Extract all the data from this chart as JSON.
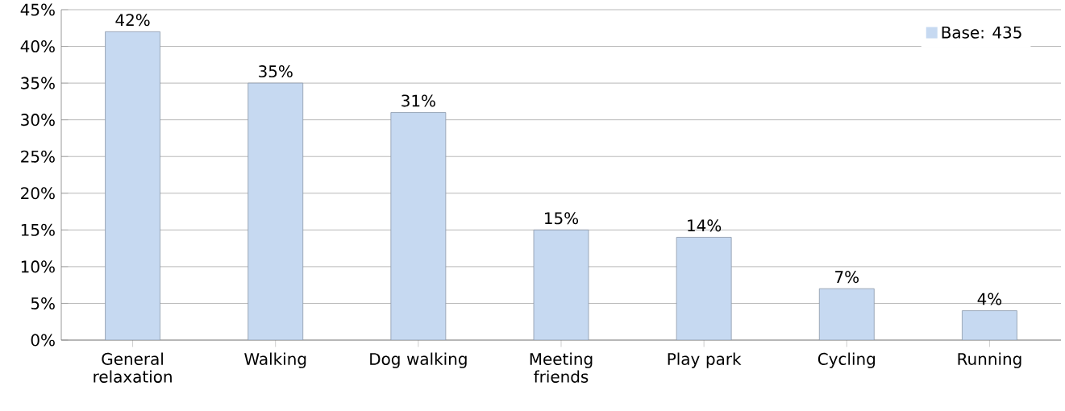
{
  "chart_data": {
    "type": "bar",
    "categories": [
      "General relaxation",
      "Walking",
      "Dog walking",
      "Meeting friends",
      "Play park",
      "Cycling",
      "Running"
    ],
    "series": [
      {
        "name": "Base: 435",
        "color": "#c6d9f1",
        "values": [
          42,
          35,
          31,
          15,
          14,
          7,
          4
        ],
        "value_labels": [
          "42%",
          "35%",
          "31%",
          "15%",
          "14%",
          "7%",
          "4%"
        ]
      }
    ],
    "ylim": [
      0,
      45
    ],
    "yticks": [
      {
        "value": 0,
        "label": "0%"
      },
      {
        "value": 5,
        "label": "5%"
      },
      {
        "value": 10,
        "label": "10%"
      },
      {
        "value": 15,
        "label": "15%"
      },
      {
        "value": 20,
        "label": "20%"
      },
      {
        "value": 25,
        "label": "25%"
      },
      {
        "value": 30,
        "label": "30%"
      },
      {
        "value": 35,
        "label": "35%"
      },
      {
        "value": 40,
        "label": "40%"
      },
      {
        "value": 45,
        "label": "45%"
      }
    ],
    "grid": "y",
    "legend": "top right"
  }
}
